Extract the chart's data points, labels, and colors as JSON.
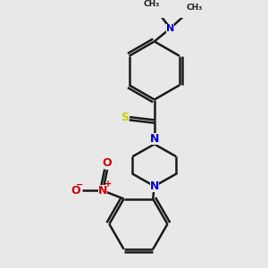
{
  "bg_color": "#e8e8e8",
  "bond_color": "#1a1a1a",
  "N_color": "#0000cc",
  "O_color": "#cc0000",
  "S_color": "#cccc00",
  "lw": 1.8,
  "figsize": [
    3.0,
    3.0
  ],
  "dpi": 100,
  "xlim": [
    -3.5,
    3.5
  ],
  "ylim": [
    -4.5,
    4.0
  ]
}
